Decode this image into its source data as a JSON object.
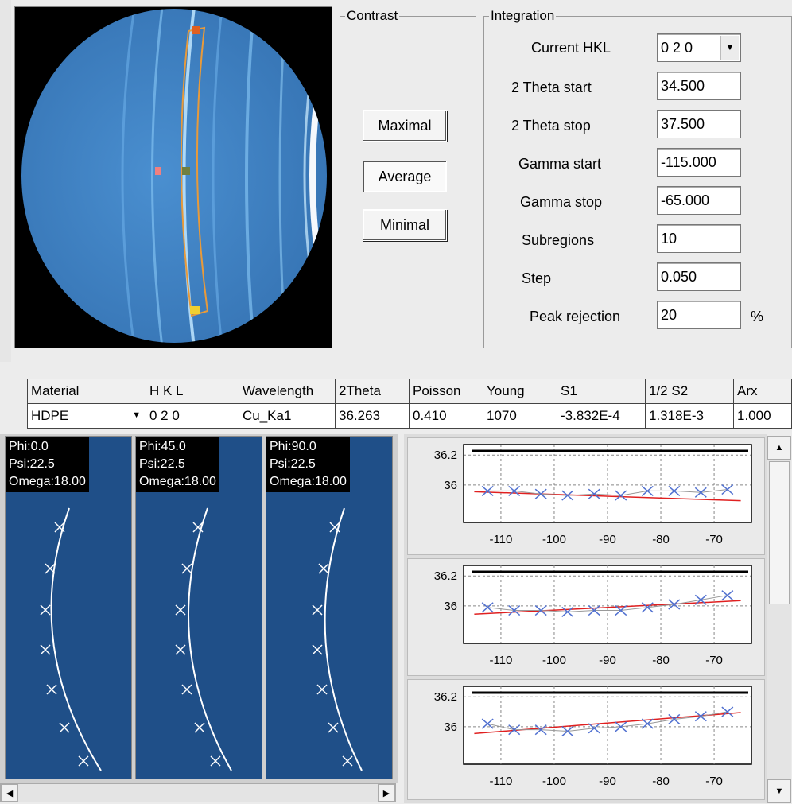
{
  "contrast": {
    "title": "Contrast",
    "maximal_label": "Maximal",
    "average_label": "Average",
    "minimal_label": "Minimal"
  },
  "integration": {
    "title": "Integration",
    "current_hkl_label": "Current HKL",
    "current_hkl_value": "0 2 0",
    "two_theta_start_label": "2 Theta start",
    "two_theta_start_value": "34.500",
    "two_theta_stop_label": "2 Theta stop",
    "two_theta_stop_value": "37.500",
    "gamma_start_label": "Gamma start",
    "gamma_start_value": "-115.000",
    "gamma_stop_label": "Gamma stop",
    "gamma_stop_value": "-65.000",
    "subregions_label": "Subregions",
    "subregions_value": "10",
    "step_label": "Step",
    "step_value": "0.050",
    "peak_rejection_label": "Peak rejection",
    "peak_rejection_value": "20",
    "peak_rejection_unit": "%"
  },
  "table": {
    "headers": [
      "Material",
      "H  K  L",
      "Wavelength",
      "2Theta",
      "Poisson",
      "Young",
      "S1",
      "1/2 S2",
      "Arx"
    ],
    "row": {
      "material": "HDPE",
      "hkl": "0 2 0",
      "wavelength": "Cu_Ka1",
      "two_theta": "36.263",
      "poisson": "0.410",
      "young": "1070",
      "s1": "-3.832E-4",
      "half_s2": "1.318E-3",
      "arx": "1.000"
    }
  },
  "frames": [
    {
      "phi": "Phi:0.0",
      "psi": "Psi:22.5",
      "omega": "Omega:18.00"
    },
    {
      "phi": "Phi:45.0",
      "psi": "Psi:22.5",
      "omega": "Omega:18.00"
    },
    {
      "phi": "Phi:90.0",
      "psi": "Psi:22.5",
      "omega": "Omega:18.00"
    }
  ],
  "colors": {
    "detector_blue": "#3f82c4",
    "frame_blue": "#1f4f88",
    "roi_orange": "#e89a3a",
    "fit_red": "#e02020",
    "marker_blue": "#5070d0"
  },
  "chart_data": [
    {
      "type": "scatter",
      "x": [
        -112.5,
        -107.5,
        -102.5,
        -97.5,
        -92.5,
        -87.5,
        -82.5,
        -77.5,
        -72.5,
        -67.5
      ],
      "y": [
        35.96,
        35.96,
        35.94,
        35.93,
        35.94,
        35.93,
        35.96,
        35.96,
        35.95,
        35.97
      ],
      "fit": [
        [
          -115,
          35.955
        ],
        [
          -65,
          35.895
        ]
      ],
      "ylim": [
        35.75,
        36.27
      ],
      "xlim": [
        -117,
        -63
      ],
      "xticks": [
        "-110",
        "-100",
        "-90",
        "-80",
        "-70"
      ],
      "yticks": [
        "36.2",
        "36"
      ],
      "grid": true
    },
    {
      "type": "scatter",
      "x": [
        -112.5,
        -107.5,
        -102.5,
        -97.5,
        -92.5,
        -87.5,
        -82.5,
        -77.5,
        -72.5,
        -67.5
      ],
      "y": [
        35.99,
        35.97,
        35.97,
        35.96,
        35.97,
        35.97,
        35.99,
        36.01,
        36.04,
        36.07
      ],
      "fit": [
        [
          -115,
          35.945
        ],
        [
          -65,
          36.035
        ]
      ],
      "ylim": [
        35.75,
        36.27
      ],
      "xlim": [
        -117,
        -63
      ],
      "xticks": [
        "-110",
        "-100",
        "-90",
        "-80",
        "-70"
      ],
      "yticks": [
        "36.2",
        "36"
      ],
      "grid": true
    },
    {
      "type": "scatter",
      "x": [
        -112.5,
        -107.5,
        -102.5,
        -97.5,
        -92.5,
        -87.5,
        -82.5,
        -77.5,
        -72.5,
        -67.5
      ],
      "y": [
        36.02,
        35.98,
        35.98,
        35.97,
        35.99,
        36.0,
        36.02,
        36.05,
        36.07,
        36.1
      ],
      "fit": [
        [
          -115,
          35.955
        ],
        [
          -65,
          36.095
        ]
      ],
      "ylim": [
        35.75,
        36.27
      ],
      "xlim": [
        -117,
        -63
      ],
      "xticks": [
        "-110",
        "-100",
        "-90",
        "-80",
        "-70"
      ],
      "yticks": [
        "36.2",
        "36"
      ],
      "grid": true
    }
  ]
}
